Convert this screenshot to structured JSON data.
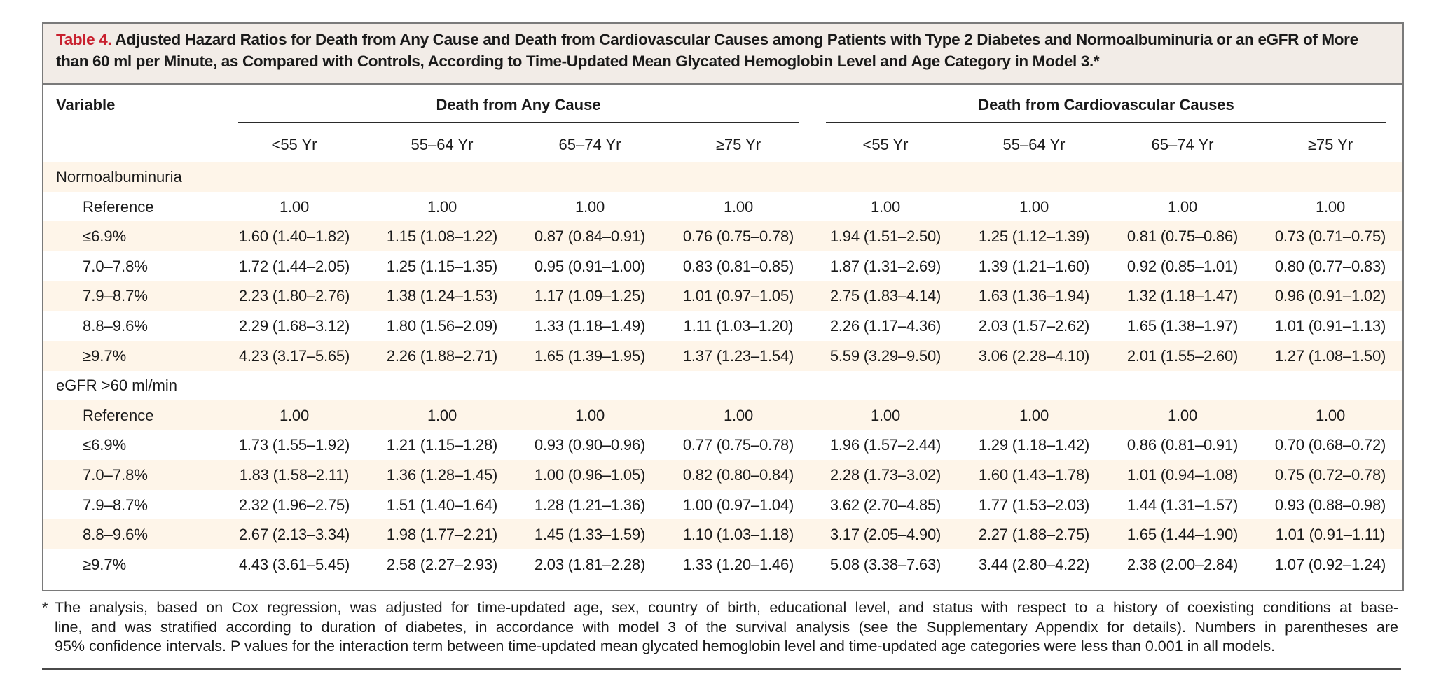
{
  "title": {
    "label": "Table 4.",
    "text_line1": "Adjusted Hazard Ratios for Death from Any Cause and Death from Cardiovascular Causes among Patients with Type 2 Diabetes and Normoalbuminuria or an eGFR of More",
    "text_line2": "than 60 ml per Minute, as Compared with Controls, According to Time-Updated Mean Glycated Hemoglobin Level and Age Category in Model 3.*"
  },
  "header": {
    "variable": "Variable",
    "groups": [
      "Death from Any Cause",
      "Death from Cardiovascular Causes"
    ],
    "age_categories": [
      "<55 Yr",
      "55–64 Yr",
      "65–74 Yr",
      "≥75 Yr",
      "<55 Yr",
      "55–64 Yr",
      "65–74 Yr",
      "≥75 Yr"
    ]
  },
  "sections": [
    {
      "label": "Normoalbuminuria",
      "rows": [
        {
          "label": "Reference",
          "values": [
            "1.00",
            "1.00",
            "1.00",
            "1.00",
            "1.00",
            "1.00",
            "1.00",
            "1.00"
          ]
        },
        {
          "label": "≤6.9%",
          "values": [
            "1.60 (1.40–1.82)",
            "1.15 (1.08–1.22)",
            "0.87 (0.84–0.91)",
            "0.76 (0.75–0.78)",
            "1.94 (1.51–2.50)",
            "1.25 (1.12–1.39)",
            "0.81 (0.75–0.86)",
            "0.73 (0.71–0.75)"
          ]
        },
        {
          "label": "7.0–7.8%",
          "values": [
            "1.72 (1.44–2.05)",
            "1.25 (1.15–1.35)",
            "0.95 (0.91–1.00)",
            "0.83 (0.81–0.85)",
            "1.87 (1.31–2.69)",
            "1.39 (1.21–1.60)",
            "0.92 (0.85–1.01)",
            "0.80 (0.77–0.83)"
          ]
        },
        {
          "label": "7.9–8.7%",
          "values": [
            "2.23 (1.80–2.76)",
            "1.38 (1.24–1.53)",
            "1.17 (1.09–1.25)",
            "1.01 (0.97–1.05)",
            "2.75 (1.83–4.14)",
            "1.63 (1.36–1.94)",
            "1.32 (1.18–1.47)",
            "0.96 (0.91–1.02)"
          ]
        },
        {
          "label": "8.8–9.6%",
          "values": [
            "2.29 (1.68–3.12)",
            "1.80 (1.56–2.09)",
            "1.33 (1.18–1.49)",
            "1.11 (1.03–1.20)",
            "2.26 (1.17–4.36)",
            "2.03 (1.57–2.62)",
            "1.65 (1.38–1.97)",
            "1.01 (0.91–1.13)"
          ]
        },
        {
          "label": "≥9.7%",
          "values": [
            "4.23 (3.17–5.65)",
            "2.26 (1.88–2.71)",
            "1.65 (1.39–1.95)",
            "1.37 (1.23–1.54)",
            "5.59 (3.29–9.50)",
            "3.06 (2.28–4.10)",
            "2.01 (1.55–2.60)",
            "1.27 (1.08–1.50)"
          ]
        }
      ]
    },
    {
      "label": "eGFR >60 ml/min",
      "rows": [
        {
          "label": "Reference",
          "values": [
            "1.00",
            "1.00",
            "1.00",
            "1.00",
            "1.00",
            "1.00",
            "1.00",
            "1.00"
          ]
        },
        {
          "label": "≤6.9%",
          "values": [
            "1.73 (1.55–1.92)",
            "1.21 (1.15–1.28)",
            "0.93 (0.90–0.96)",
            "0.77 (0.75–0.78)",
            "1.96 (1.57–2.44)",
            "1.29 (1.18–1.42)",
            "0.86 (0.81–0.91)",
            "0.70 (0.68–0.72)"
          ]
        },
        {
          "label": "7.0–7.8%",
          "values": [
            "1.83 (1.58–2.11)",
            "1.36 (1.28–1.45)",
            "1.00 (0.96–1.05)",
            "0.82 (0.80–0.84)",
            "2.28 (1.73–3.02)",
            "1.60 (1.43–1.78)",
            "1.01 (0.94–1.08)",
            "0.75 (0.72–0.78)"
          ]
        },
        {
          "label": "7.9–8.7%",
          "values": [
            "2.32 (1.96–2.75)",
            "1.51 (1.40–1.64)",
            "1.28 (1.21–1.36)",
            "1.00 (0.97–1.04)",
            "3.62 (2.70–4.85)",
            "1.77 (1.53–2.03)",
            "1.44 (1.31–1.57)",
            "0.93 (0.88–0.98)"
          ]
        },
        {
          "label": "8.8–9.6%",
          "values": [
            "2.67 (2.13–3.34)",
            "1.98 (1.77–2.21)",
            "1.45 (1.33–1.59)",
            "1.10 (1.03–1.18)",
            "3.17 (2.05–4.90)",
            "2.27 (1.88–2.75)",
            "1.65 (1.44–1.90)",
            "1.01 (0.91–1.11)"
          ]
        },
        {
          "label": "≥9.7%",
          "values": [
            "4.43 (3.61–5.45)",
            "2.58 (2.27–2.93)",
            "2.03 (1.81–2.28)",
            "1.33 (1.20–1.46)",
            "5.08 (3.38–7.63)",
            "3.44 (2.80–4.22)",
            "2.38 (2.00–2.84)",
            "1.07 (0.92–1.24)"
          ]
        }
      ]
    }
  ],
  "footnote": {
    "marker": "*",
    "lines": [
      "The analysis, based on Cox regression, was adjusted for time-updated age, sex, country of birth, educational level, and status with respect to a history of coexisting conditions at base-",
      "line, and was stratified according to duration of diabetes, in accordance with model 3 of the survival analysis (see the Supplementary Appendix for details). Numbers in parentheses are",
      "95% confidence intervals. P values for the interaction term between time-updated mean glycated hemoglobin level and time-updated age categories were less than 0.001 in all models."
    ]
  },
  "colors": {
    "title_label": "#c8202e",
    "title_background": "#f2ece7",
    "row_band": "#fef5e9",
    "border": "#7a7a7a"
  }
}
